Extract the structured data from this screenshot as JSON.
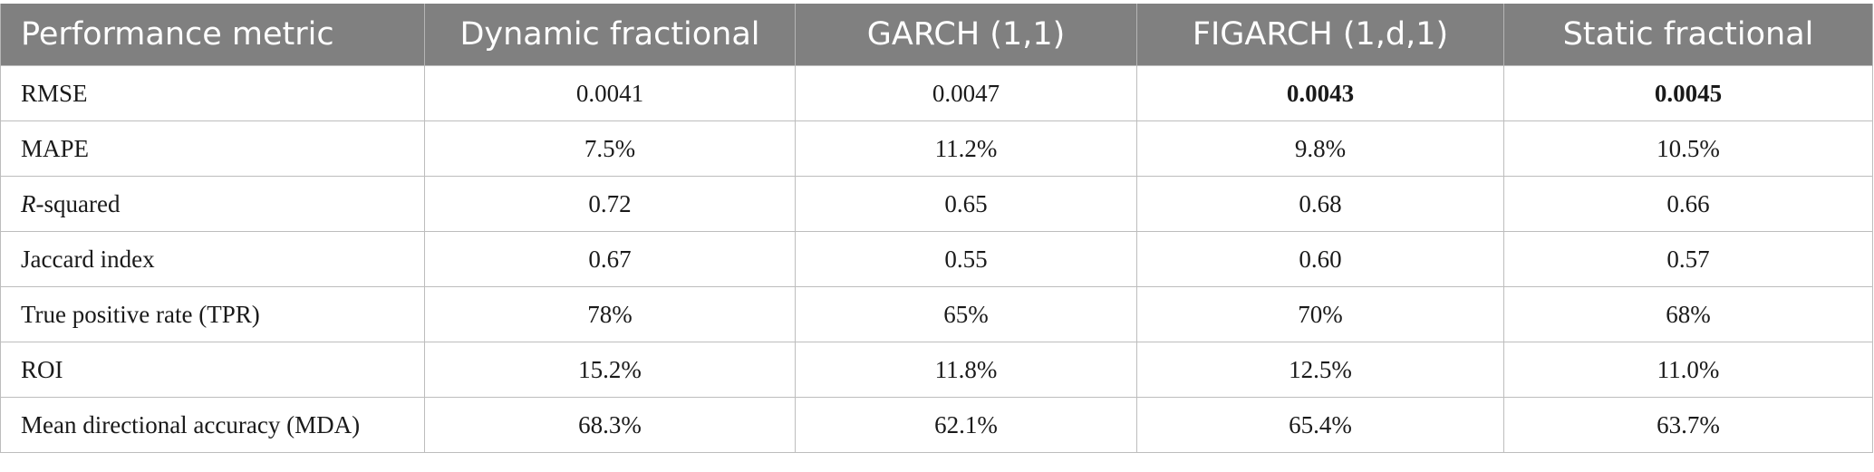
{
  "table": {
    "headers": [
      "Performance metric",
      "Dynamic fractional",
      "GARCH (1,1)",
      "FIGARCH (1,d,1)",
      "Static fractional"
    ],
    "rows": [
      {
        "metric": "RMSE",
        "values": [
          "0.0041",
          "0.0047",
          "0.0043",
          "0.0045"
        ]
      },
      {
        "metric": "MAPE",
        "values": [
          "7.5%",
          "11.2%",
          "9.8%",
          "10.5%"
        ]
      },
      {
        "metric_italic": "R",
        "metric_rest": "-squared",
        "values": [
          "0.72",
          "0.65",
          "0.68",
          "0.66"
        ]
      },
      {
        "metric": "Jaccard index",
        "values": [
          "0.67",
          "0.55",
          "0.60",
          "0.57"
        ]
      },
      {
        "metric": "True positive rate (TPR)",
        "values": [
          "78%",
          "65%",
          "70%",
          "68%"
        ]
      },
      {
        "metric": "ROI",
        "values": [
          "15.2%",
          "11.8%",
          "12.5%",
          "11.0%"
        ]
      },
      {
        "metric": "Mean directional accuracy (MDA)",
        "values": [
          "68.3%",
          "62.1%",
          "65.4%",
          "63.7%"
        ]
      }
    ]
  }
}
